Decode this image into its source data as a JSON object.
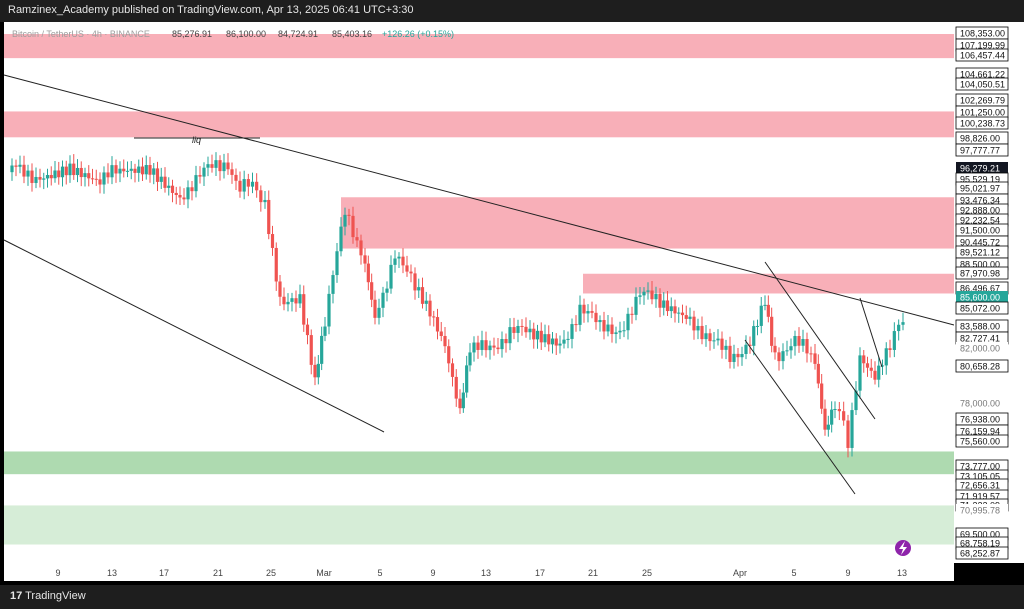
{
  "header": {
    "publisher_line": "Ramzinex_Academy published on TradingView.com, Apr 13, 2025 06:41 UTC+3:30"
  },
  "symbol_line": {
    "name": "Bitcoin / TetherUS · 4h · BINANCE",
    "open": "85,276.91",
    "high": "86,100.00",
    "low": "84,724.91",
    "close": "85,403.16",
    "change": "+126.26 (+0.15%)"
  },
  "footer": {
    "brand": "TradingView"
  },
  "chart_data": {
    "type": "candlestick",
    "x_ticks": [
      "9",
      "13",
      "17",
      "21",
      "25",
      "Mar",
      "5",
      "9",
      "13",
      "17",
      "21",
      "25",
      "Apr",
      "5",
      "9",
      "13"
    ],
    "price_labels": [
      {
        "text": "108,353.00",
        "style": "box"
      },
      {
        "text": "107,199.99",
        "style": "box"
      },
      {
        "text": "106,457.44",
        "style": "box"
      },
      {
        "text": "104,661.22",
        "style": "box"
      },
      {
        "text": "104,050.51",
        "style": "box"
      },
      {
        "text": "102,269.79",
        "style": "box"
      },
      {
        "text": "101,250.00",
        "style": "box"
      },
      {
        "text": "100,238.73",
        "style": "box"
      },
      {
        "text": "98,826.00",
        "style": "box"
      },
      {
        "text": "97,777.77",
        "style": "box"
      },
      {
        "text": "96,279.21",
        "style": "dark"
      },
      {
        "text": "95,529.19",
        "style": "box"
      },
      {
        "text": "95,021.97",
        "style": "box"
      },
      {
        "text": "93,476.34",
        "style": "box"
      },
      {
        "text": "92,888.00",
        "style": "box"
      },
      {
        "text": "92,232.54",
        "style": "box"
      },
      {
        "text": "91,500.00",
        "style": "box"
      },
      {
        "text": "90,445.72",
        "style": "box"
      },
      {
        "text": "89,521.12",
        "style": "box"
      },
      {
        "text": "88,500.00",
        "style": "box"
      },
      {
        "text": "87,970.98",
        "style": "box"
      },
      {
        "text": "86,496.67",
        "style": "box"
      },
      {
        "text": "85,600.00",
        "style": "green"
      },
      {
        "text": "85,072.00",
        "style": "box"
      },
      {
        "text": "83,588.00",
        "style": "box"
      },
      {
        "text": "82,727.41",
        "style": "box"
      },
      {
        "text": "82,000.00",
        "style": "plain"
      },
      {
        "text": "80,658.28",
        "style": "box"
      },
      {
        "text": "78,000.00",
        "style": "plain"
      },
      {
        "text": "76,938.00",
        "style": "box"
      },
      {
        "text": "76,159.94",
        "style": "box"
      },
      {
        "text": "75,560.00",
        "style": "box"
      },
      {
        "text": "73,777.00",
        "style": "box"
      },
      {
        "text": "73,105.05",
        "style": "box"
      },
      {
        "text": "72,656.31",
        "style": "box"
      },
      {
        "text": "71,919.57",
        "style": "box"
      },
      {
        "text": "71,322.09",
        "style": "box"
      },
      {
        "text": "70,995.78",
        "style": "plain"
      },
      {
        "text": "69,500.00",
        "style": "box"
      },
      {
        "text": "68,758.19",
        "style": "box"
      },
      {
        "text": "68,252.87",
        "style": "box"
      }
    ],
    "zones": [
      {
        "type": "supply",
        "low": 106457.44,
        "high": 108353.0
      },
      {
        "type": "supply",
        "low": 100238.73,
        "high": 102269.79
      },
      {
        "type": "supply",
        "low": 91500.0,
        "high": 95529.19
      },
      {
        "type": "supply",
        "low": 87970.98,
        "high": 89521.12
      },
      {
        "type": "demand",
        "low": 73777.0,
        "high": 75560.0
      },
      {
        "type": "demand",
        "low": 68252.87,
        "high": 71322.09
      }
    ],
    "annotations": [
      {
        "text": "liq"
      }
    ],
    "colors": {
      "up": "#26a69a",
      "down": "#ef5350",
      "supply_zone": "#f7a1ab",
      "demand_zone": "#a5d6a7",
      "trendline": "#222222"
    }
  }
}
